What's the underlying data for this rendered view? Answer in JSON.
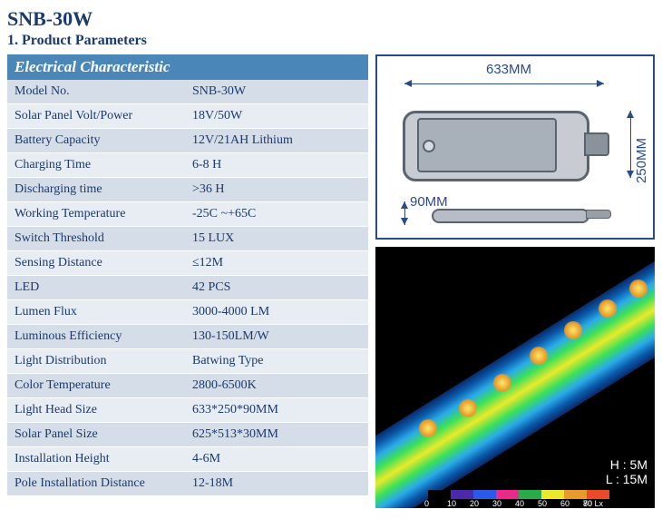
{
  "title": "SNB-30W",
  "section_heading": "1. Product Parameters",
  "table_header": "Electrical Characteristic",
  "rows": [
    {
      "label": "Model No.",
      "value": "SNB-30W"
    },
    {
      "label": "Solar Panel Volt/Power",
      "value": "18V/50W"
    },
    {
      "label": "Battery Capacity",
      "value": "12V/21AH Lithium"
    },
    {
      "label": "Charging Time",
      "value": "6-8 H"
    },
    {
      "label": "Discharging time",
      "value": ">36 H"
    },
    {
      "label": "Working Temperature",
      "value": "-25C ~+65C"
    },
    {
      "label": "Switch Threshold",
      "value": "15 LUX"
    },
    {
      "label": "Sensing Distance",
      "value": "≤12M"
    },
    {
      "label": "LED",
      "value": "42 PCS"
    },
    {
      "label": "Lumen Flux",
      "value": "3000-4000 LM"
    },
    {
      "label": "Luminous Efficiency",
      "value": "130-150LM/W"
    },
    {
      "label": "Light Distribution",
      "value": "Batwing Type"
    },
    {
      "label": "Color Temperature",
      "value": "2800-6500K"
    },
    {
      "label": "Light Head Size",
      "value": "633*250*90MM"
    },
    {
      "label": "Solar Panel Size",
      "value": "625*513*30MM"
    },
    {
      "label": "Installation Height",
      "value": "4-6M"
    },
    {
      "label": "Pole Installation Distance",
      "value": "12-18M"
    }
  ],
  "diagram": {
    "length_label": "633MM",
    "width_label": "250MM",
    "height_label": "90MM"
  },
  "simulation": {
    "h_label": "H : 5M",
    "l_label": "L : 15M",
    "scale_values": [
      "0",
      "10",
      "20",
      "30",
      "40",
      "50",
      "60",
      "70",
      "80"
    ],
    "scale_unit": "Lx",
    "scale_colors": [
      "#000000",
      "#4a2aaa",
      "#2a5aea",
      "#ea2a8a",
      "#2aaa4a",
      "#eaea2a",
      "#ea9a2a",
      "#ea4a2a"
    ]
  },
  "colors": {
    "heading": "#1a3a6e",
    "header_bar": "#4a86b8",
    "row_alt": "#d5dde9",
    "row_plain": "#e8ecf3",
    "diagram_border": "#2a4a8a"
  }
}
